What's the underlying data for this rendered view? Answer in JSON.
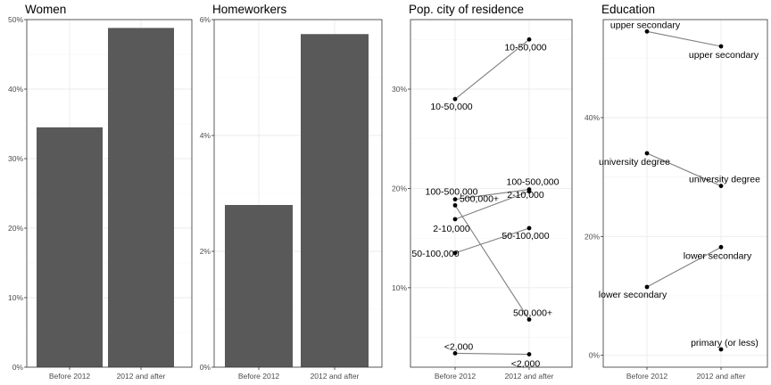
{
  "chart_data": [
    {
      "type": "bar",
      "title": "Women",
      "categories": [
        "Before 2012",
        "2012 and after"
      ],
      "values": [
        0.345,
        0.488
      ],
      "ylim": [
        0,
        0.5
      ],
      "yticks": [
        0,
        0.1,
        0.2,
        0.3,
        0.4,
        0.5
      ],
      "ytick_labels": [
        "0%",
        "10%",
        "20%",
        "30%",
        "40%",
        "50%"
      ],
      "grid": true
    },
    {
      "type": "bar",
      "title": "Homeworkers",
      "categories": [
        "Before 2012",
        "2012 and after"
      ],
      "values": [
        0.028,
        0.0575
      ],
      "ylim": [
        0,
        0.06
      ],
      "yticks": [
        0,
        0.02,
        0.04,
        0.06
      ],
      "ytick_labels": [
        "0%",
        "2%",
        "4%",
        "6%"
      ],
      "grid": true
    },
    {
      "type": "line",
      "title": "Pop. city of residence",
      "categories": [
        "Before 2012",
        "2012 and after"
      ],
      "ylim": [
        0.02,
        0.37
      ],
      "yticks": [
        0.1,
        0.2,
        0.3
      ],
      "ytick_labels": [
        "10%",
        "20%",
        "30%"
      ],
      "grid": true,
      "series": [
        {
          "name": "10-50,000",
          "values": [
            0.29,
            0.35
          ]
        },
        {
          "name": "100-500,000",
          "values": [
            0.189,
            0.199
          ]
        },
        {
          "name": "500,000+",
          "values": [
            0.183,
            0.068
          ]
        },
        {
          "name": "2-10,000",
          "values": [
            0.169,
            0.197
          ]
        },
        {
          "name": "50-100,000",
          "values": [
            0.135,
            0.16
          ]
        },
        {
          "name": "<2,000",
          "values": [
            0.034,
            0.033
          ]
        }
      ]
    },
    {
      "type": "line",
      "title": "Education",
      "categories": [
        "Before 2012",
        "2012 and after"
      ],
      "ylim": [
        -0.02,
        0.565
      ],
      "yticks": [
        0,
        0.2,
        0.4
      ],
      "ytick_labels": [
        "0%",
        "20%",
        "40%"
      ],
      "grid": true,
      "series": [
        {
          "name": "upper secondary",
          "values": [
            0.545,
            0.52
          ]
        },
        {
          "name": "university degree",
          "values": [
            0.34,
            0.285
          ]
        },
        {
          "name": "lower secondary",
          "values": [
            0.115,
            0.182
          ]
        },
        {
          "name": "primary (or less)",
          "values": [
            null,
            0.01
          ]
        }
      ]
    }
  ]
}
